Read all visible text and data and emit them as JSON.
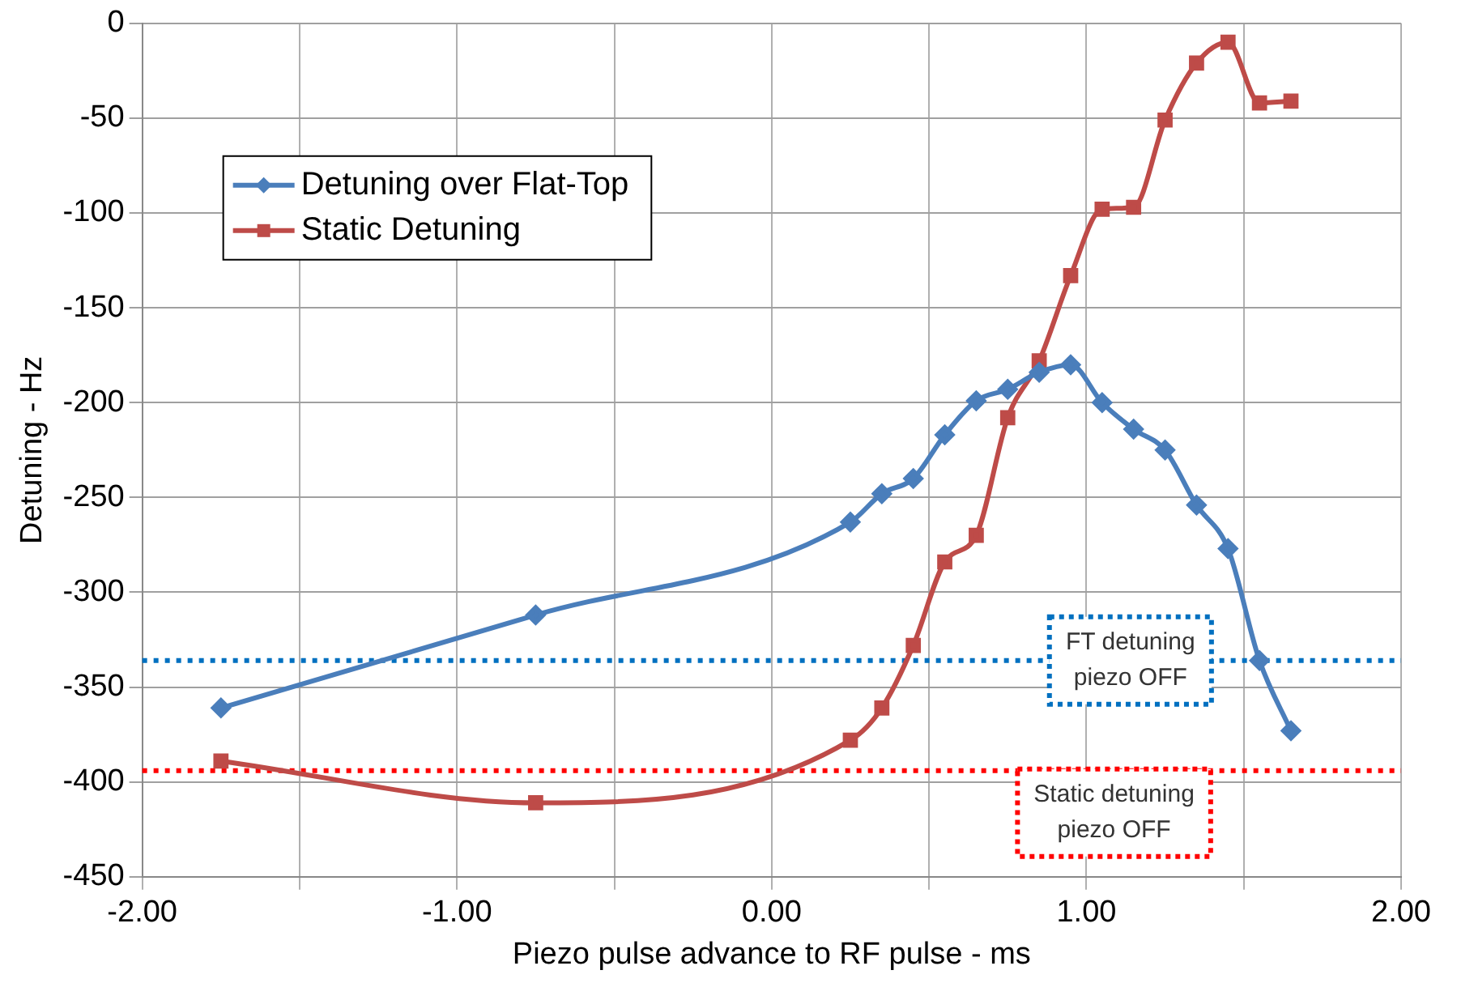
{
  "chart_data": {
    "type": "line",
    "xlabel": "Piezo pulse advance to RF pulse - ms",
    "ylabel": "Detuning - Hz",
    "xlim": [
      -2,
      2
    ],
    "xticks": [
      {
        "value": -2,
        "label": "-2.00"
      },
      {
        "value": -1.5,
        "label": null
      },
      {
        "value": -1,
        "label": "-1.00"
      },
      {
        "value": -0.5,
        "label": null
      },
      {
        "value": 0,
        "label": "0.00"
      },
      {
        "value": 0.5,
        "label": null
      },
      {
        "value": 1,
        "label": "1.00"
      },
      {
        "value": 1.5,
        "label": null
      },
      {
        "value": 2,
        "label": "2.00"
      }
    ],
    "ylim": [
      -450,
      0
    ],
    "yticks": [
      -450,
      -400,
      -350,
      -300,
      -250,
      -200,
      -150,
      -100,
      -50,
      0
    ],
    "grid": true,
    "legend": "top left",
    "x": [
      -1.75,
      -0.75,
      0.25,
      0.35,
      0.45,
      0.55,
      0.65,
      0.75,
      0.85,
      0.95,
      1.05,
      1.15,
      1.25,
      1.35,
      1.45,
      1.55,
      1.65
    ],
    "series": [
      {
        "name": "Detuning over Flat-Top",
        "color": "#4a7ebb",
        "marker": "diamond",
        "values": [
          -361,
          -312,
          -263,
          -248,
          -240,
          -217,
          -199,
          -193,
          -184,
          -180,
          -200,
          -214,
          -225,
          -254,
          -277,
          -336,
          -373
        ]
      },
      {
        "name": "Static Detuning",
        "color": "#be4b48",
        "marker": "square",
        "values": [
          -389,
          -411,
          -378,
          -361,
          -328,
          -284,
          -270,
          -208,
          -178,
          -133,
          -98,
          -97,
          -51,
          -21,
          -10,
          -42,
          -41
        ]
      }
    ],
    "ref_lines": [
      {
        "axis": "y",
        "value": -336,
        "label": "FT detuning piezo OFF",
        "color": "#0070c0",
        "line_style": "dotted"
      },
      {
        "axis": "y",
        "value": -394,
        "label": "Static detuning piezo OFF",
        "color": "#ff0000",
        "line_style": "dotted"
      }
    ]
  }
}
